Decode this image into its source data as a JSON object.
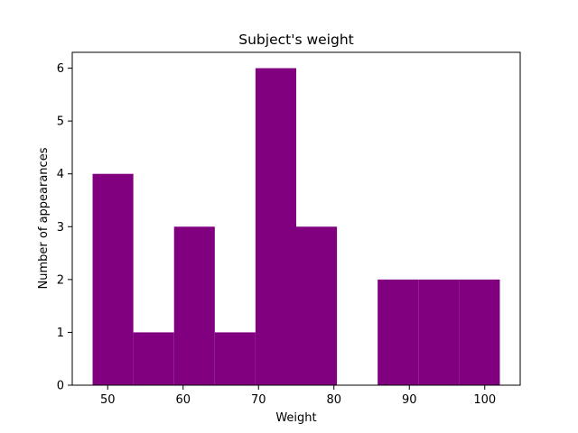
{
  "chart_data": {
    "type": "bar",
    "title": "Subject's weight",
    "xlabel": "Weight",
    "ylabel": "Number of appearances",
    "bin_edges": [
      48,
      53.4,
      58.8,
      64.2,
      69.6,
      75,
      80.4,
      85.8,
      91.2,
      96.6,
      102
    ],
    "values": [
      4,
      1,
      3,
      1,
      6,
      3,
      0,
      2,
      2,
      2
    ],
    "xlim": [
      45.3,
      104.7
    ],
    "ylim": [
      0,
      6.3
    ],
    "xticks": [
      50,
      60,
      70,
      80,
      90,
      100
    ],
    "yticks": [
      0,
      1,
      2,
      3,
      4,
      5,
      6
    ],
    "bar_color": "#800080",
    "grid": false
  }
}
